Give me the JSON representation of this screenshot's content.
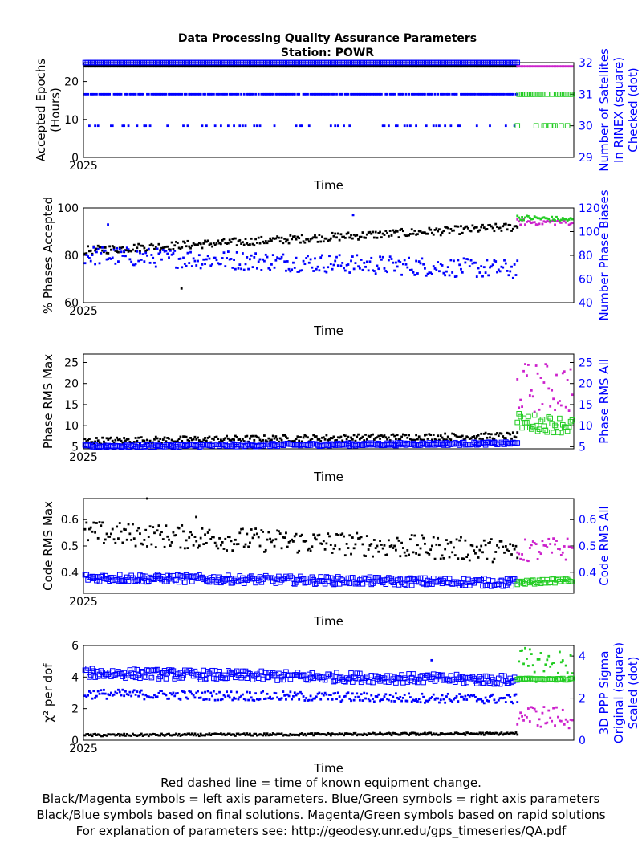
{
  "title": "Data Processing Quality Assurance Parameters",
  "subtitle": "Station: POWR",
  "colors": {
    "final_left": "#000000",
    "final_right": "#0000ff",
    "rapid_left": "#cc22cc",
    "rapid_right": "#22cc22",
    "axis_right": "#0000ff"
  },
  "footer": [
    "Red dashed line = time of known equipment change.",
    "Black/Magenta symbols = left axis parameters. Blue/Green symbols = right axis parameters",
    "Black/Blue symbols based on final solutions.  Magenta/Green symbols based on rapid solutions",
    "For explanation of parameters see: http://geodesy.unr.edu/gps_timeseries/QA.pdf"
  ],
  "chart_data": [
    {
      "type": "scatter",
      "id": "epochs",
      "xlabel": "Time",
      "x_tick_label": "2025",
      "ylabel_left": [
        "Accepted Epochs",
        "(Hours)"
      ],
      "ylabel_right": [
        "Number of Satellites",
        "In RINEX (square)",
        "Checked (dot)"
      ],
      "ylim_left": [
        0,
        25
      ],
      "ylim_right": [
        29,
        32
      ],
      "yticks_left": [
        0,
        10,
        20
      ],
      "yticks_right": [
        29,
        30,
        31,
        32
      ],
      "series": [
        {
          "role": "final_left",
          "marker": "dot",
          "model": "const",
          "value": 24,
          "count": 300,
          "outliers": [
            [
              28,
              22.5
            ],
            [
              28,
              0
            ]
          ]
        },
        {
          "role": "final_right",
          "marker": "square",
          "model": "const",
          "value": 32,
          "count": 300
        },
        {
          "role": "final_right",
          "marker": "dot",
          "model": "levels",
          "levels": [
            31,
            31,
            31,
            31,
            30
          ],
          "count": 300
        },
        {
          "role": "rapid_left",
          "marker": "dot",
          "model": "const",
          "value": 24,
          "count": 36
        },
        {
          "role": "rapid_right",
          "marker": "square",
          "model": "levels",
          "levels": [
            31,
            31,
            31,
            30
          ],
          "count": 36
        }
      ]
    },
    {
      "type": "scatter",
      "id": "phases",
      "xlabel": "Time",
      "x_tick_label": "2025",
      "ylabel_left": [
        "% Phases Accepted"
      ],
      "ylabel_right": [
        "Number Phase Biases"
      ],
      "ylim_left": [
        60,
        100
      ],
      "ylim_right": [
        40,
        120
      ],
      "yticks_left": [
        60,
        80,
        100
      ],
      "yticks_right": [
        40,
        60,
        80,
        100,
        120
      ],
      "series": [
        {
          "role": "final_left",
          "marker": "dot",
          "model": "trend",
          "start": 82,
          "end": 92,
          "spread": 3.5,
          "count": 300,
          "outliers": [
            [
              0.2,
              66
            ]
          ]
        },
        {
          "role": "final_right",
          "marker": "dot",
          "model": "trend",
          "start": 80,
          "end": 68,
          "spread": 16,
          "count": 300,
          "outliers": [
            [
              0.05,
              106
            ],
            [
              0.55,
              114
            ]
          ]
        },
        {
          "role": "rapid_left",
          "marker": "dot",
          "model": "trend",
          "start": 94,
          "end": 94,
          "spread": 2.5,
          "count": 36
        },
        {
          "role": "rapid_right",
          "marker": "dot",
          "model": "trend",
          "start": 112,
          "end": 110,
          "spread": 4,
          "count": 36
        }
      ]
    },
    {
      "type": "scatter",
      "id": "phase-rms",
      "xlabel": "Time",
      "x_tick_label": "2025",
      "ylabel_left": [
        "Phase RMS Max"
      ],
      "ylabel_right": [
        "Phase RMS All"
      ],
      "ylim_left": [
        4.5,
        27
      ],
      "ylim_right": [
        4.5,
        27
      ],
      "yticks_left": [
        5,
        10,
        15,
        20,
        25
      ],
      "yticks_right": [
        5,
        10,
        15,
        20,
        25
      ],
      "series": [
        {
          "role": "final_left",
          "marker": "dot",
          "model": "trend",
          "start": 6.4,
          "end": 7.6,
          "spread": 1.6,
          "count": 300
        },
        {
          "role": "final_right",
          "marker": "square",
          "model": "trend",
          "start": 5.1,
          "end": 5.8,
          "spread": 0.7,
          "count": 300
        },
        {
          "role": "rapid_left",
          "marker": "dot",
          "model": "trend",
          "start": 19,
          "end": 19,
          "spread": 12,
          "count": 36
        },
        {
          "role": "rapid_right",
          "marker": "square",
          "model": "trend",
          "start": 11,
          "end": 10,
          "spread": 4,
          "count": 36
        }
      ]
    },
    {
      "type": "scatter",
      "id": "code-rms",
      "xlabel": "Time",
      "x_tick_label": "2025",
      "ylabel_left": [
        "Code RMS Max"
      ],
      "ylabel_right": [
        "Code RMS All"
      ],
      "ylim_left": [
        0.32,
        0.68
      ],
      "ylim_right": [
        0.32,
        0.68
      ],
      "yticks_left": [
        0.4,
        0.5,
        0.6
      ],
      "yticks_right": [
        0.4,
        0.5,
        0.6
      ],
      "series": [
        {
          "role": "final_left",
          "marker": "dot",
          "model": "trend",
          "start": 0.55,
          "end": 0.48,
          "spread": 0.09,
          "count": 300,
          "outliers": [
            [
              0.13,
              0.68
            ],
            [
              0.23,
              0.61
            ]
          ]
        },
        {
          "role": "final_right",
          "marker": "square",
          "model": "trend",
          "start": 0.38,
          "end": 0.36,
          "spread": 0.03,
          "count": 300
        },
        {
          "role": "rapid_left",
          "marker": "dot",
          "model": "trend",
          "start": 0.48,
          "end": 0.49,
          "spread": 0.09,
          "count": 36
        },
        {
          "role": "rapid_right",
          "marker": "square",
          "model": "trend",
          "start": 0.36,
          "end": 0.37,
          "spread": 0.015,
          "count": 36
        }
      ]
    },
    {
      "type": "scatter",
      "id": "chi2",
      "xlabel": "Time",
      "x_tick_label": "2025",
      "ylabel_left": [
        "χ² per dof"
      ],
      "ylabel_right": [
        "3D PPP Sigma",
        "Original (square)",
        "Scaled (dot)"
      ],
      "ylim_left": [
        0,
        6
      ],
      "ylim_right": [
        0,
        4.5
      ],
      "yticks_left": [
        0,
        2,
        4,
        6
      ],
      "yticks_right": [
        0,
        2,
        4
      ],
      "series": [
        {
          "role": "final_left",
          "marker": "dot",
          "model": "trend",
          "start": 0.32,
          "end": 0.42,
          "spread": 0.15,
          "count": 300
        },
        {
          "role": "final_right",
          "marker": "square",
          "model": "trend",
          "start": 3.2,
          "end": 2.85,
          "spread": 0.45,
          "count": 300,
          "outliers": [
            [
              0.71,
              3.8
            ]
          ]
        },
        {
          "role": "final_right",
          "marker": "dot",
          "model": "trend",
          "start": 2.2,
          "end": 1.95,
          "spread": 0.45,
          "count": 300
        },
        {
          "role": "rapid_left",
          "marker": "dot",
          "model": "trend",
          "start": 1.6,
          "end": 1.4,
          "spread": 1.4,
          "count": 36
        },
        {
          "role": "rapid_right",
          "marker": "dot",
          "model": "trend",
          "start": 3.6,
          "end": 3.5,
          "spread": 1.6,
          "count": 36
        },
        {
          "role": "rapid_right",
          "marker": "square",
          "model": "trend",
          "start": 2.9,
          "end": 2.9,
          "spread": 0.08,
          "count": 36
        }
      ]
    }
  ]
}
